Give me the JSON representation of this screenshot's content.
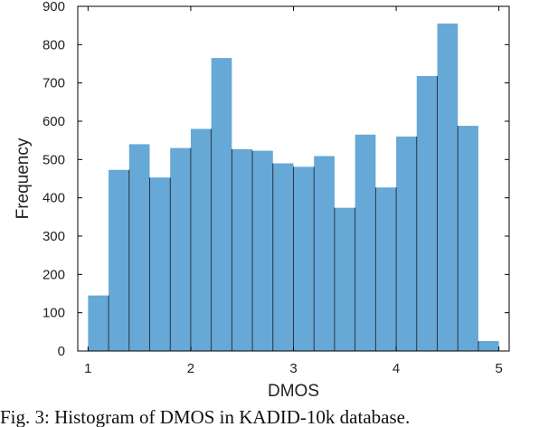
{
  "chart_data": {
    "type": "bar",
    "xlabel": "DMOS",
    "ylabel": "Frequency",
    "xlim": [
      0.9,
      5.1
    ],
    "ylim": [
      0,
      900
    ],
    "xticks": [
      "1",
      "2",
      "3",
      "4",
      "5"
    ],
    "yticks": [
      "0",
      "100",
      "200",
      "300",
      "400",
      "500",
      "600",
      "700",
      "800",
      "900"
    ],
    "bar_color": "#66a8d6",
    "bins": [
      {
        "x0": 1.0,
        "x1": 1.2,
        "value": 145
      },
      {
        "x0": 1.2,
        "x1": 1.4,
        "value": 473
      },
      {
        "x0": 1.4,
        "x1": 1.6,
        "value": 540
      },
      {
        "x0": 1.6,
        "x1": 1.8,
        "value": 453
      },
      {
        "x0": 1.8,
        "x1": 2.0,
        "value": 530
      },
      {
        "x0": 2.0,
        "x1": 2.2,
        "value": 580
      },
      {
        "x0": 2.2,
        "x1": 2.4,
        "value": 765
      },
      {
        "x0": 2.4,
        "x1": 2.6,
        "value": 527
      },
      {
        "x0": 2.6,
        "x1": 2.8,
        "value": 523
      },
      {
        "x0": 2.8,
        "x1": 3.0,
        "value": 490
      },
      {
        "x0": 3.0,
        "x1": 3.2,
        "value": 481
      },
      {
        "x0": 3.2,
        "x1": 3.4,
        "value": 509
      },
      {
        "x0": 3.4,
        "x1": 3.6,
        "value": 374
      },
      {
        "x0": 3.6,
        "x1": 3.8,
        "value": 565
      },
      {
        "x0": 3.8,
        "x1": 4.0,
        "value": 427
      },
      {
        "x0": 4.0,
        "x1": 4.2,
        "value": 560
      },
      {
        "x0": 4.2,
        "x1": 4.4,
        "value": 718
      },
      {
        "x0": 4.4,
        "x1": 4.6,
        "value": 855
      },
      {
        "x0": 4.6,
        "x1": 4.8,
        "value": 588
      },
      {
        "x0": 4.8,
        "x1": 5.0,
        "value": 26
      }
    ]
  },
  "caption": "Fig. 3: Histogram of DMOS in KADID-10k database."
}
